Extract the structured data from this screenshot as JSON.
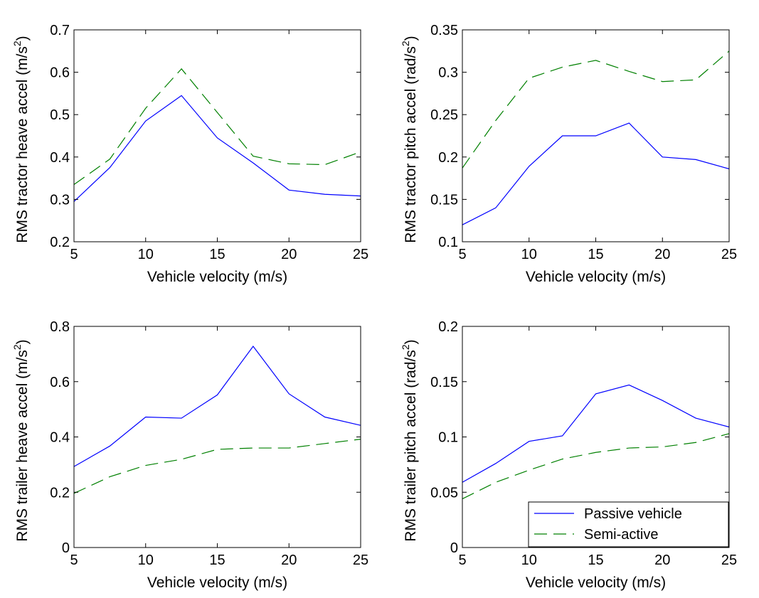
{
  "colors": {
    "passive": "#0000ff",
    "semi_active": "#008000",
    "axes": "#000000"
  },
  "legend": {
    "location": "bottom-right",
    "entries": [
      "Passive vehicle",
      "Semi-active"
    ]
  },
  "chart_data": [
    {
      "type": "line",
      "xlabel": "Vehicle velocity (m/s)",
      "ylabel": {
        "text": "RMS tractor heave accel (m/s",
        "sup": "2",
        "close": ")"
      },
      "xlim": [
        5,
        25
      ],
      "ylim": [
        0.2,
        0.7
      ],
      "xticks": [
        "5",
        "10",
        "15",
        "20",
        "25"
      ],
      "xtick_values": [
        5,
        10,
        15,
        20,
        25
      ],
      "yticks": [
        "0.2",
        "0.3",
        "0.4",
        "0.5",
        "0.6",
        "0.7"
      ],
      "ytick_values": [
        0.2,
        0.3,
        0.4,
        0.5,
        0.6,
        0.7
      ],
      "grid": false,
      "x": [
        5,
        7.5,
        10,
        12.5,
        15,
        17.5,
        20,
        22.5,
        25
      ],
      "series": [
        {
          "name": "Passive vehicle",
          "style": "solid",
          "values": [
            0.295,
            0.375,
            0.485,
            0.545,
            0.445,
            0.386,
            0.322,
            0.312,
            0.308
          ]
        },
        {
          "name": "Semi-active",
          "style": "dashed",
          "values": [
            0.335,
            0.395,
            0.515,
            0.608,
            0.505,
            0.402,
            0.384,
            0.382,
            0.412
          ]
        }
      ]
    },
    {
      "type": "line",
      "xlabel": "Vehicle velocity (m/s)",
      "ylabel": {
        "text": "RMS tractor pitch accel (rad/s",
        "sup": "2",
        "close": ")"
      },
      "xlim": [
        5,
        25
      ],
      "ylim": [
        0.1,
        0.35
      ],
      "xticks": [
        "5",
        "10",
        "15",
        "20",
        "25"
      ],
      "xtick_values": [
        5,
        10,
        15,
        20,
        25
      ],
      "yticks": [
        "0.1",
        "0.15",
        "0.2",
        "0.25",
        "0.3",
        "0.35"
      ],
      "ytick_values": [
        0.1,
        0.15,
        0.2,
        0.25,
        0.3,
        0.35
      ],
      "grid": false,
      "x": [
        5,
        7.5,
        10,
        12.5,
        15,
        17.5,
        20,
        22.5,
        25
      ],
      "series": [
        {
          "name": "Passive vehicle",
          "style": "solid",
          "values": [
            0.12,
            0.14,
            0.189,
            0.225,
            0.225,
            0.24,
            0.2,
            0.197,
            0.186
          ]
        },
        {
          "name": "Semi-active",
          "style": "dashed",
          "values": [
            0.187,
            0.243,
            0.293,
            0.306,
            0.314,
            0.301,
            0.289,
            0.291,
            0.325
          ]
        }
      ]
    },
    {
      "type": "line",
      "xlabel": "Vehicle velocity (m/s)",
      "ylabel": {
        "text": "RMS trailer heave accel (m/s",
        "sup": "2",
        "close": ")"
      },
      "xlim": [
        5,
        25
      ],
      "ylim": [
        0,
        0.8
      ],
      "xticks": [
        "5",
        "10",
        "15",
        "20",
        "25"
      ],
      "xtick_values": [
        5,
        10,
        15,
        20,
        25
      ],
      "yticks": [
        "0",
        "0.2",
        "0.4",
        "0.6",
        "0.8"
      ],
      "ytick_values": [
        0,
        0.2,
        0.4,
        0.6,
        0.8
      ],
      "grid": false,
      "x": [
        5,
        7.5,
        10,
        12.5,
        15,
        17.5,
        20,
        22.5,
        25
      ],
      "series": [
        {
          "name": "Passive vehicle",
          "style": "solid",
          "values": [
            0.293,
            0.367,
            0.472,
            0.468,
            0.552,
            0.728,
            0.556,
            0.472,
            0.442
          ]
        },
        {
          "name": "Semi-active",
          "style": "dashed",
          "values": [
            0.196,
            0.256,
            0.297,
            0.319,
            0.355,
            0.36,
            0.36,
            0.376,
            0.392
          ]
        }
      ]
    },
    {
      "type": "line",
      "xlabel": "Vehicle velocity (m/s)",
      "ylabel": {
        "text": "RMS trailer pitch accel (rad/s",
        "sup": "2",
        "close": ")"
      },
      "xlim": [
        5,
        25
      ],
      "ylim": [
        0,
        0.2
      ],
      "xticks": [
        "5",
        "10",
        "15",
        "20",
        "25"
      ],
      "xtick_values": [
        5,
        10,
        15,
        20,
        25
      ],
      "yticks": [
        "0",
        "0.05",
        "0.1",
        "0.15",
        "0.2"
      ],
      "ytick_values": [
        0,
        0.05,
        0.1,
        0.15,
        0.2
      ],
      "grid": false,
      "x": [
        5,
        7.5,
        10,
        12.5,
        15,
        17.5,
        20,
        22.5,
        25
      ],
      "series": [
        {
          "name": "Passive vehicle",
          "style": "solid",
          "values": [
            0.059,
            0.076,
            0.096,
            0.101,
            0.139,
            0.147,
            0.133,
            0.117,
            0.109
          ]
        },
        {
          "name": "Semi-active",
          "style": "dashed",
          "values": [
            0.044,
            0.059,
            0.07,
            0.08,
            0.086,
            0.09,
            0.091,
            0.095,
            0.103
          ]
        }
      ]
    }
  ]
}
